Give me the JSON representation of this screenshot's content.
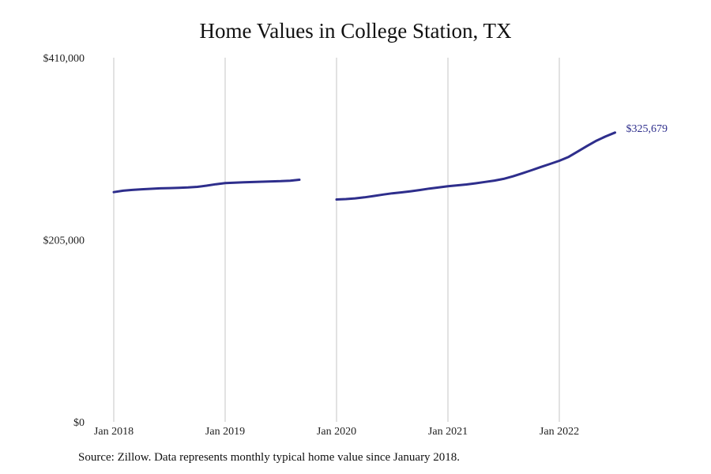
{
  "source_note": "Source: Zillow. Data represents monthly typical home value since January 2018.",
  "colors": {
    "line": "#2e2e8c",
    "grid": "#c4c4c4",
    "text": "#222222"
  },
  "chart_data": {
    "type": "line",
    "title": "Home Values in College Station, TX",
    "xlabel": "",
    "ylabel": "",
    "x_ticks": [
      "Jan 2018",
      "Jan 2019",
      "Jan 2020",
      "Jan 2021",
      "Jan 2022"
    ],
    "y_ticks": [
      "$410,000",
      "$205,000",
      "$0"
    ],
    "ylim": [
      0,
      410000
    ],
    "grid": "vertical lines at x ticks",
    "end_label": "$325,679",
    "series": [
      {
        "segments": [
          {
            "x": [
              "2018-01",
              "2018-02",
              "2018-03",
              "2018-04",
              "2018-05",
              "2018-06",
              "2018-07",
              "2018-08",
              "2018-09",
              "2018-10",
              "2018-11",
              "2018-12",
              "2019-01",
              "2019-02",
              "2019-03",
              "2019-04",
              "2019-05",
              "2019-06",
              "2019-07",
              "2019-08",
              "2019-09"
            ],
            "y": [
              258600,
              260200,
              261100,
              261800,
              262400,
              262900,
              263200,
              263500,
              263900,
              264600,
              265900,
              267500,
              268800,
              269300,
              269700,
              270000,
              270400,
              270700,
              271000,
              271500,
              272600
            ]
          },
          {
            "x": [
              "2020-01",
              "2020-02",
              "2020-03",
              "2020-04",
              "2020-05",
              "2020-06",
              "2020-07",
              "2020-08",
              "2020-09",
              "2020-10",
              "2020-11",
              "2020-12",
              "2021-01",
              "2021-02",
              "2021-03",
              "2021-04",
              "2021-05",
              "2021-06",
              "2021-07",
              "2021-08",
              "2021-09",
              "2021-10",
              "2021-11",
              "2021-12",
              "2022-01",
              "2022-02",
              "2022-03",
              "2022-04",
              "2022-05",
              "2022-06",
              "2022-07"
            ],
            "y": [
              250400,
              250800,
              251600,
              252800,
              254300,
              255900,
              257300,
              258400,
              259600,
              261000,
              262600,
              264000,
              265300,
              266300,
              267300,
              268600,
              270100,
              271600,
              273600,
              276400,
              279800,
              283300,
              286900,
              290400,
              293900,
              298300,
              304400,
              310700,
              316500,
              321400,
              325679
            ]
          }
        ]
      }
    ]
  }
}
